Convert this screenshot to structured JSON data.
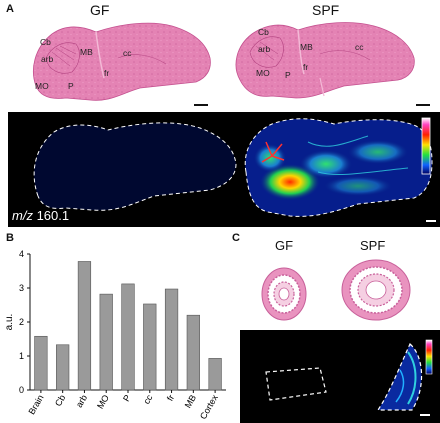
{
  "panel_a": {
    "letter": "A",
    "left_title": "GF",
    "right_title": "SPF",
    "region_labels": [
      "Cb",
      "arb",
      "MB",
      "cc",
      "fr",
      "MO",
      "P"
    ],
    "mz_prefix": "m/z",
    "mz_value": "160.1"
  },
  "panel_b": {
    "letter": "B"
  },
  "panel_c": {
    "letter": "C",
    "left_title": "GF",
    "right_title": "SPF"
  },
  "chart_data": {
    "type": "bar",
    "categories": [
      "Brain",
      "Cb",
      "arb",
      "MO",
      "P",
      "cc",
      "fr",
      "MB",
      "Cortex"
    ],
    "values": [
      1.58,
      1.33,
      3.78,
      2.82,
      3.12,
      2.53,
      2.97,
      2.2,
      0.93
    ],
    "ylabel": "a.u.",
    "xlabel": "",
    "title": "",
    "ylim": [
      0,
      4
    ],
    "yticks": [
      "0",
      "1",
      "2",
      "3",
      "4"
    ],
    "bar_color": "#9a9a9a",
    "grid": false
  },
  "colors": {
    "stain": "#e27fb1",
    "stain_dark": "#c85c97",
    "imaging_bg": "#000000"
  }
}
